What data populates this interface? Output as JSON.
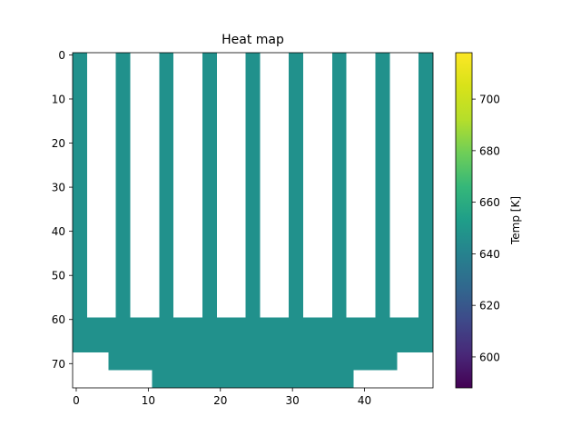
{
  "chart_data": {
    "type": "heatmap",
    "title": "Heat map",
    "xlabel": "",
    "ylabel": "",
    "xlim": [
      -0.5,
      49.5
    ],
    "ylim": [
      75.5,
      -0.5
    ],
    "x_ticks": [
      0,
      10,
      20,
      30,
      40
    ],
    "y_ticks": [
      0,
      10,
      20,
      30,
      40,
      50,
      60,
      70
    ],
    "colormap": "viridis",
    "cell_value": 660,
    "cell_color": "#21918c",
    "background_color": "#ffffff",
    "filled_regions": [
      {
        "x_range": [
          0,
          1
        ],
        "y_range": [
          0,
          59
        ]
      },
      {
        "x_range": [
          6,
          7
        ],
        "y_range": [
          0,
          59
        ]
      },
      {
        "x_range": [
          12,
          13
        ],
        "y_range": [
          0,
          59
        ]
      },
      {
        "x_range": [
          18,
          19
        ],
        "y_range": [
          0,
          59
        ]
      },
      {
        "x_range": [
          24,
          25
        ],
        "y_range": [
          0,
          59
        ]
      },
      {
        "x_range": [
          30,
          31
        ],
        "y_range": [
          0,
          59
        ]
      },
      {
        "x_range": [
          36,
          37
        ],
        "y_range": [
          0,
          59
        ]
      },
      {
        "x_range": [
          42,
          43
        ],
        "y_range": [
          0,
          59
        ]
      },
      {
        "x_range": [
          48,
          49
        ],
        "y_range": [
          0,
          59
        ]
      },
      {
        "x_range": [
          0,
          49
        ],
        "y_range": [
          60,
          67
        ]
      },
      {
        "x_range": [
          5,
          44
        ],
        "y_range": [
          68,
          71
        ]
      },
      {
        "x_range": [
          11,
          38
        ],
        "y_range": [
          72,
          75
        ]
      }
    ],
    "colorbar": {
      "label": "Temp [K]",
      "vmin": 588,
      "vmax": 718,
      "ticks": [
        600,
        620,
        640,
        660,
        680,
        700
      ]
    }
  }
}
